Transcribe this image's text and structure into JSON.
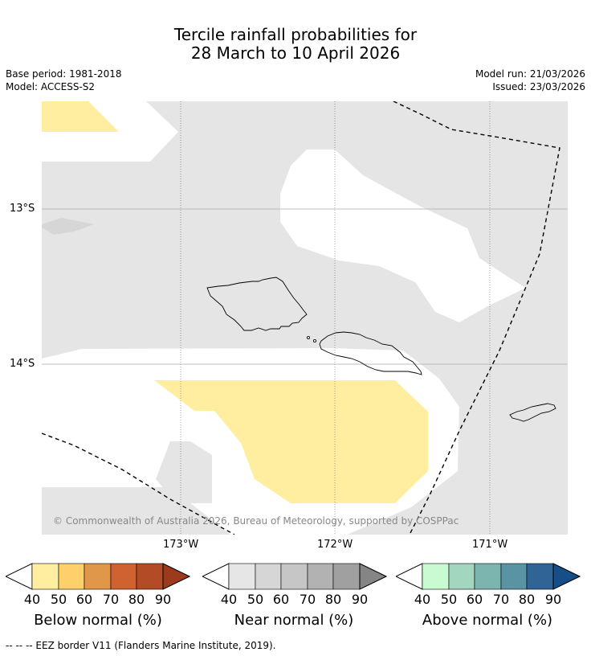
{
  "title": {
    "line1": "Tercile rainfall probabilities for",
    "line2": "28 March to 10 April 2026"
  },
  "meta": {
    "base_period": "Base period: 1981-2018",
    "model": "Model: ACCESS-S2",
    "model_run": "Model run: 21/03/2026",
    "issued": "Issued: 23/03/2026"
  },
  "map": {
    "latitudes": [
      "13°S",
      "14°S"
    ],
    "longitudes": [
      "173°W",
      "172°W",
      "171°W"
    ],
    "copyright": "© Commonwealth of Australia 2026, Bureau of Meteorology, supported by COSPPac",
    "colors": {
      "near_normal_fill": "#e5e5e5",
      "near_normal_dark": "#d6d6d6",
      "below_normal_fill": "#ffeda0",
      "land_outline": "#000000"
    }
  },
  "colorbars": [
    {
      "name": "below",
      "label": "Below normal (%)",
      "ticks": [
        "40",
        "50",
        "60",
        "70",
        "80",
        "90"
      ],
      "colors": [
        "#ffeda0",
        "#fed06a",
        "#e0974a",
        "#ce6331",
        "#b34b26",
        "#9c3a1e"
      ]
    },
    {
      "name": "near",
      "label": "Near normal (%)",
      "ticks": [
        "40",
        "50",
        "60",
        "70",
        "80",
        "90"
      ],
      "colors": [
        "#e6e6e6",
        "#d6d6d6",
        "#c6c6c6",
        "#b2b2b2",
        "#a0a0a0",
        "#858585"
      ]
    },
    {
      "name": "above",
      "label": "Above normal (%)",
      "ticks": [
        "40",
        "50",
        "60",
        "70",
        "80",
        "90"
      ],
      "colors": [
        "#c8fbd1",
        "#a2d6be",
        "#7cb5b0",
        "#5a93a3",
        "#306497",
        "#164e87"
      ]
    }
  ],
  "footnote": "--  --  -- EEZ border V11 (Flanders Marine Institute, 2019)."
}
